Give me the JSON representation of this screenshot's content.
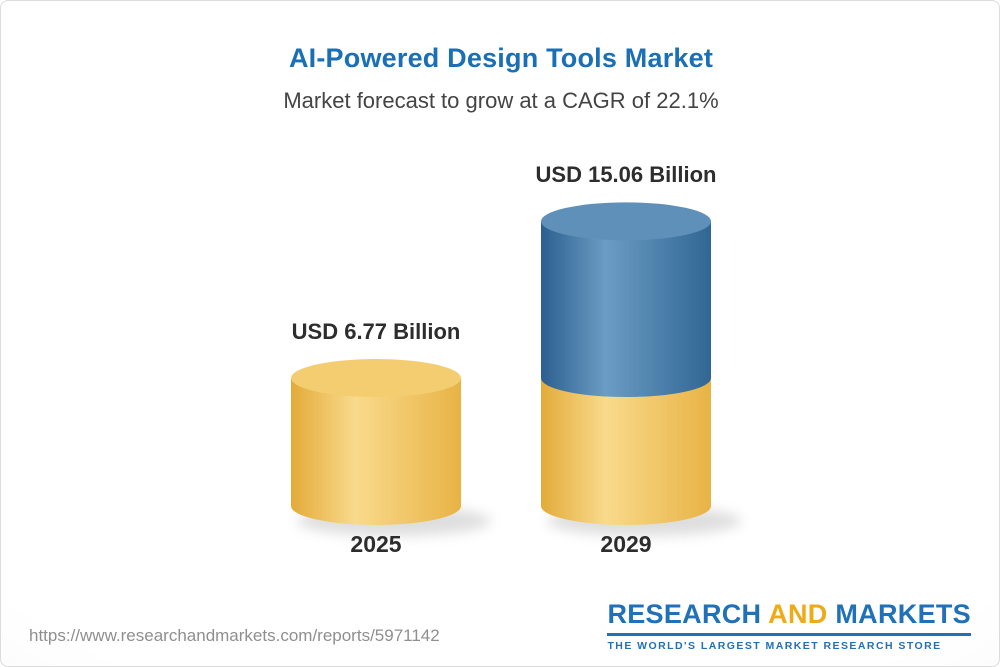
{
  "header": {
    "title": "AI-Powered Design Tools Market",
    "subtitle": "Market forecast to grow at a CAGR of 22.1%"
  },
  "chart_data": {
    "type": "bar",
    "bar_style": "3d-cylinder",
    "title": "AI-Powered Design Tools Market",
    "subtitle": "Market forecast to grow at a CAGR of 22.1%",
    "cagr_percent": 22.1,
    "unit": "USD Billion",
    "categories": [
      "2025",
      "2029"
    ],
    "values": [
      6.77,
      15.06
    ],
    "value_labels": [
      "USD 6.77 Billion",
      "USD 15.06 Billion"
    ],
    "bars": [
      {
        "category": "2025",
        "total": 6.77,
        "segments": [
          {
            "value": 6.77,
            "color_key": "gold"
          }
        ]
      },
      {
        "category": "2029",
        "total": 15.06,
        "segments": [
          {
            "value": 6.77,
            "color_key": "gold"
          },
          {
            "value": 8.29,
            "color_key": "blue"
          }
        ]
      }
    ],
    "colors": {
      "gold_edge": "#e3ab39",
      "gold_mid": "#f9da8c",
      "gold_edge2": "#e8b345",
      "gold_top": "#f3cd70",
      "blue_edge": "#2b5f8e",
      "blue_mid": "#6b9cc4",
      "blue_edge2": "#316694",
      "blue_top": "#5e90ba"
    },
    "grid": false,
    "legend_position": "none"
  },
  "footer": {
    "url": "https://www.researchandmarkets.com/reports/5971142",
    "logo": {
      "word1": "RESEARCH",
      "word2": "AND",
      "word3": "MARKETS",
      "tagline": "THE WORLD'S LARGEST MARKET RESEARCH STORE"
    }
  }
}
